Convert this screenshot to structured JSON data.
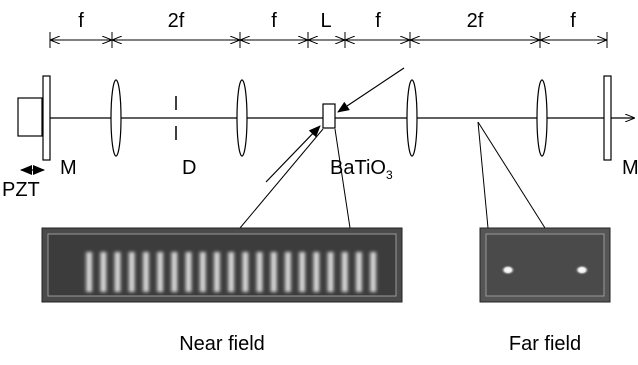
{
  "dimensions": [
    "f",
    "2f",
    "f",
    "L",
    "f",
    "2f",
    "f"
  ],
  "labels": {
    "mirror_left": "M",
    "diaphragm": "D",
    "crystal": {
      "text": "BaTiO",
      "subscript": "3"
    },
    "mirror_right": "M",
    "pzt": "PZT"
  },
  "insets": {
    "near": "Near field",
    "far": "Far field"
  }
}
